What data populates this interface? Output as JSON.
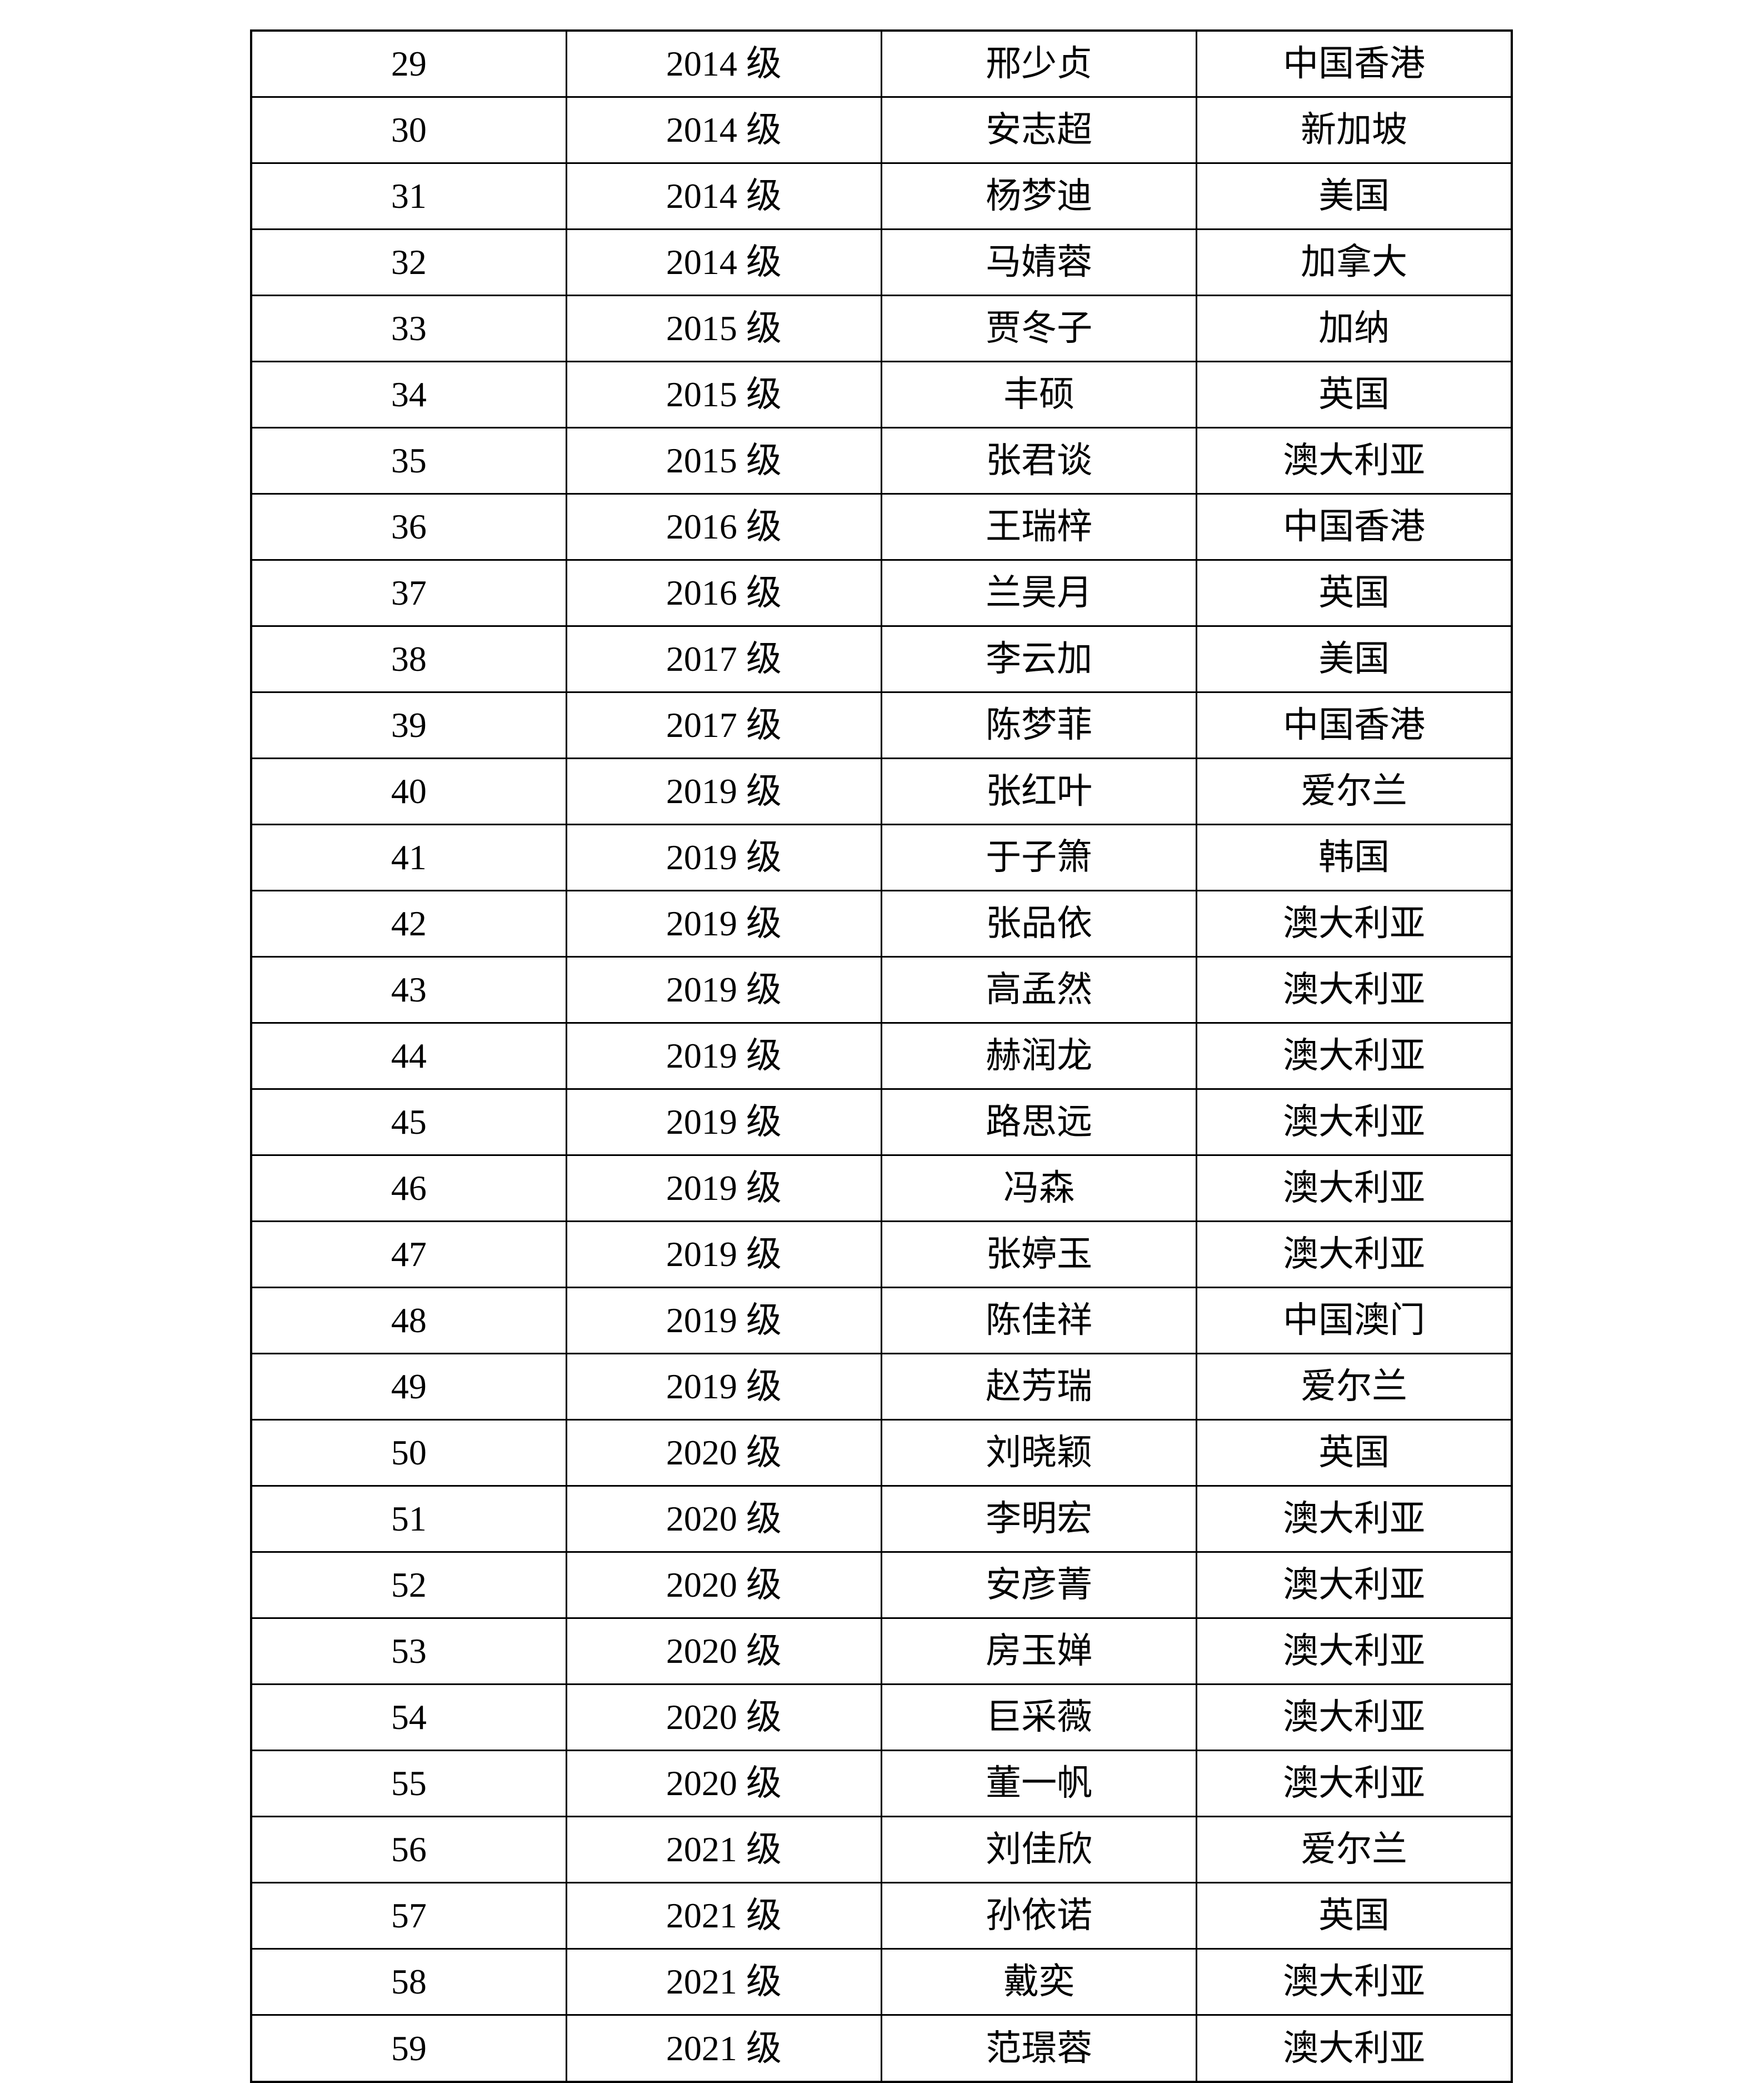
{
  "table": {
    "rows": [
      {
        "no": "29",
        "grade": "2014 级",
        "name": "邢少贞",
        "region": "中国香港"
      },
      {
        "no": "30",
        "grade": "2014 级",
        "name": "安志超",
        "region": "新加坡"
      },
      {
        "no": "31",
        "grade": "2014 级",
        "name": "杨梦迪",
        "region": "美国"
      },
      {
        "no": "32",
        "grade": "2014 级",
        "name": "马婧蓉",
        "region": "加拿大"
      },
      {
        "no": "33",
        "grade": "2015 级",
        "name": "贾冬子",
        "region": "加纳"
      },
      {
        "no": "34",
        "grade": "2015 级",
        "name": "丰硕",
        "region": "英国"
      },
      {
        "no": "35",
        "grade": "2015 级",
        "name": "张君谈",
        "region": "澳大利亚"
      },
      {
        "no": "36",
        "grade": "2016 级",
        "name": "王瑞梓",
        "region": "中国香港"
      },
      {
        "no": "37",
        "grade": "2016 级",
        "name": "兰昊月",
        "region": "英国"
      },
      {
        "no": "38",
        "grade": "2017 级",
        "name": "李云加",
        "region": "美国"
      },
      {
        "no": "39",
        "grade": "2017 级",
        "name": "陈梦菲",
        "region": "中国香港"
      },
      {
        "no": "40",
        "grade": "2019 级",
        "name": "张红叶",
        "region": "爱尔兰"
      },
      {
        "no": "41",
        "grade": "2019 级",
        "name": "于子箫",
        "region": "韩国"
      },
      {
        "no": "42",
        "grade": "2019 级",
        "name": "张品依",
        "region": "澳大利亚"
      },
      {
        "no": "43",
        "grade": "2019 级",
        "name": "高孟然",
        "region": "澳大利亚"
      },
      {
        "no": "44",
        "grade": "2019 级",
        "name": "赫润龙",
        "region": "澳大利亚"
      },
      {
        "no": "45",
        "grade": "2019 级",
        "name": "路思远",
        "region": "澳大利亚"
      },
      {
        "no": "46",
        "grade": "2019 级",
        "name": "冯森",
        "region": "澳大利亚"
      },
      {
        "no": "47",
        "grade": "2019 级",
        "name": "张婷玉",
        "region": "澳大利亚"
      },
      {
        "no": "48",
        "grade": "2019 级",
        "name": "陈佳祥",
        "region": "中国澳门"
      },
      {
        "no": "49",
        "grade": "2019 级",
        "name": "赵芳瑞",
        "region": "爱尔兰"
      },
      {
        "no": "50",
        "grade": "2020 级",
        "name": "刘晓颖",
        "region": "英国"
      },
      {
        "no": "51",
        "grade": "2020 级",
        "name": "李明宏",
        "region": "澳大利亚"
      },
      {
        "no": "52",
        "grade": "2020 级",
        "name": "安彦菁",
        "region": "澳大利亚"
      },
      {
        "no": "53",
        "grade": "2020 级",
        "name": "房玉婵",
        "region": "澳大利亚"
      },
      {
        "no": "54",
        "grade": "2020 级",
        "name": "巨采薇",
        "region": "澳大利亚"
      },
      {
        "no": "55",
        "grade": "2020 级",
        "name": "董一帆",
        "region": "澳大利亚"
      },
      {
        "no": "56",
        "grade": "2021 级",
        "name": "刘佳欣",
        "region": "爱尔兰"
      },
      {
        "no": "57",
        "grade": "2021 级",
        "name": "孙依诺",
        "region": "英国"
      },
      {
        "no": "58",
        "grade": "2021 级",
        "name": "戴奕",
        "region": "澳大利亚"
      },
      {
        "no": "59",
        "grade": "2021 级",
        "name": "范璟蓉",
        "region": "澳大利亚"
      }
    ]
  }
}
